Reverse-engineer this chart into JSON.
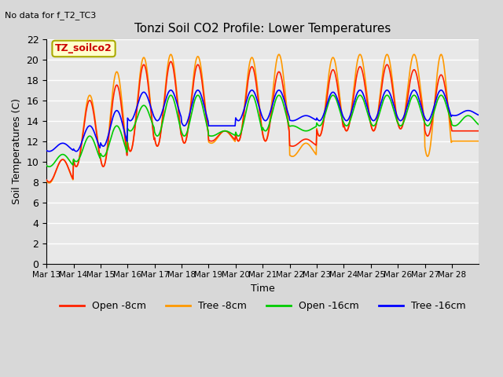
{
  "title": "Tonzi Soil CO2 Profile: Lower Temperatures",
  "subtitle": "No data for f_T2_TC3",
  "ylabel": "Soil Temperatures (C)",
  "xlabel": "Time",
  "watermark": "TZ_soilco2",
  "ylim": [
    0,
    22
  ],
  "yticks": [
    0,
    2,
    4,
    6,
    8,
    10,
    12,
    14,
    16,
    18,
    20,
    22
  ],
  "xtick_labels": [
    "Mar 13",
    "Mar 14",
    "Mar 15",
    "Mar 16",
    "Mar 17",
    "Mar 18",
    "Mar 19",
    "Mar 20",
    "Mar 21",
    "Mar 22",
    "Mar 23",
    "Mar 24",
    "Mar 25",
    "Mar 26",
    "Mar 27",
    "Mar 28"
  ],
  "background_color": "#d8d8d8",
  "plot_bg_color": "#e8e8e8",
  "grid_color": "#ffffff",
  "legend_labels": [
    "Open -8cm",
    "Tree -8cm",
    "Open -16cm",
    "Tree -16cm"
  ],
  "line_colors": [
    "#ff2200",
    "#ff9900",
    "#00cc00",
    "#0000ff"
  ],
  "open8_max": [
    10.2,
    16.0,
    17.5,
    19.5,
    19.8,
    19.5,
    13.0,
    19.3,
    18.8,
    12.2,
    19.0,
    19.3,
    19.5,
    19.0,
    18.5,
    13.0
  ],
  "open8_min": [
    8.0,
    9.5,
    9.5,
    11.0,
    11.5,
    11.8,
    12.0,
    12.0,
    12.0,
    11.5,
    12.5,
    13.0,
    13.0,
    13.2,
    12.5,
    13.0
  ],
  "tree8_max": [
    10.2,
    16.5,
    18.8,
    20.2,
    20.5,
    20.3,
    13.0,
    20.2,
    20.5,
    11.8,
    20.2,
    20.5,
    20.5,
    20.5,
    20.5,
    12.0
  ],
  "tree8_min": [
    7.9,
    9.5,
    9.5,
    11.0,
    11.5,
    11.8,
    11.8,
    12.0,
    12.0,
    10.5,
    12.5,
    13.0,
    13.0,
    13.2,
    10.5,
    12.0
  ],
  "open16_max": [
    10.7,
    12.5,
    13.5,
    15.5,
    16.5,
    16.5,
    13.0,
    16.5,
    16.5,
    13.0,
    16.5,
    16.5,
    16.5,
    16.5,
    16.5,
    14.5
  ],
  "open16_min": [
    9.5,
    10.0,
    10.5,
    13.0,
    12.5,
    12.5,
    12.5,
    12.5,
    13.0,
    13.5,
    13.5,
    13.5,
    13.5,
    13.5,
    13.5,
    13.5
  ],
  "tree16_max": [
    11.8,
    13.5,
    15.0,
    16.8,
    17.0,
    17.0,
    13.5,
    17.0,
    17.0,
    14.5,
    16.8,
    17.0,
    17.0,
    17.0,
    17.0,
    15.0
  ],
  "tree16_min": [
    11.0,
    11.0,
    11.5,
    14.0,
    14.0,
    13.5,
    13.5,
    14.0,
    14.0,
    14.0,
    14.0,
    14.0,
    14.0,
    14.0,
    14.0,
    14.5
  ]
}
